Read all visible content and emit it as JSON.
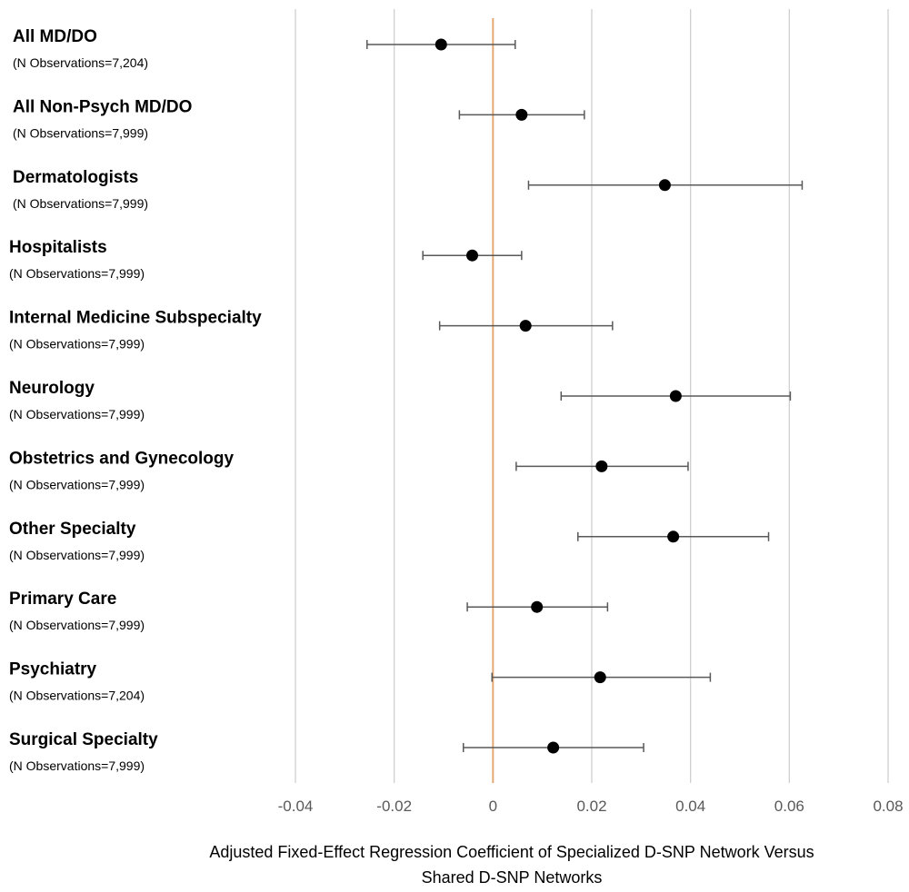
{
  "chart_data": {
    "type": "scatter",
    "subtype": "forest-plot",
    "xlim": [
      -0.04,
      0.08
    ],
    "x_ticks": [
      "-0.04",
      "-0.02",
      "0",
      "0.02",
      "0.04",
      "0.06",
      "0.08"
    ],
    "x_tick_values": [
      -0.04,
      -0.02,
      0,
      0.02,
      0.04,
      0.06,
      0.08
    ],
    "reference_line": 0,
    "grid": "vertical",
    "xlabel_lines": [
      "Adjusted Fixed-Effect Regression Coefficient of Specialized D-SNP Network Versus",
      "Shared D-SNP Networks"
    ],
    "rows": [
      {
        "label": "All MD/DO",
        "sublabel": "(N Observations=7,204)",
        "estimate": -0.0105,
        "ci_low": -0.0255,
        "ci_high": 0.0045
      },
      {
        "label": "All Non-Psych MD/DO",
        "sublabel": "(N Observations=7,999)",
        "estimate": 0.0058,
        "ci_low": -0.0068,
        "ci_high": 0.0185
      },
      {
        "label": "Dermatologists",
        "sublabel": "(N Observations=7,999)",
        "estimate": 0.0348,
        "ci_low": 0.0072,
        "ci_high": 0.0626
      },
      {
        "label": "Hospitalists",
        "sublabel": "(N Observations=7,999)",
        "estimate": -0.0042,
        "ci_low": -0.0142,
        "ci_high": 0.0058
      },
      {
        "label": "Internal Medicine Subspecialty",
        "sublabel": "(N Observations=7,999)",
        "estimate": 0.0066,
        "ci_low": -0.0108,
        "ci_high": 0.0242
      },
      {
        "label": "Neurology",
        "sublabel": "(N Observations=7,999)",
        "estimate": 0.037,
        "ci_low": 0.0138,
        "ci_high": 0.0602
      },
      {
        "label": "Obstetrics and Gynecology",
        "sublabel": "(N Observations=7,999)",
        "estimate": 0.022,
        "ci_low": 0.0047,
        "ci_high": 0.0395
      },
      {
        "label": "Other Specialty",
        "sublabel": "(N Observations=7,999)",
        "estimate": 0.0365,
        "ci_low": 0.0172,
        "ci_high": 0.0558
      },
      {
        "label": "Primary Care",
        "sublabel": "(N Observations=7,999)",
        "estimate": 0.0089,
        "ci_low": -0.0052,
        "ci_high": 0.0232
      },
      {
        "label": "Psychiatry",
        "sublabel": "(N Observations=7,204)",
        "estimate": 0.0217,
        "ci_low": -0.0002,
        "ci_high": 0.044
      },
      {
        "label": "Surgical Specialty",
        "sublabel": "(N Observations=7,999)",
        "estimate": 0.0122,
        "ci_low": -0.006,
        "ci_high": 0.0305
      }
    ],
    "colors": {
      "point": "#000000",
      "error_bar": "#595959",
      "grid": "#d0d0d0",
      "reference_line": "#e3a873",
      "tick_label": "#595959"
    }
  }
}
